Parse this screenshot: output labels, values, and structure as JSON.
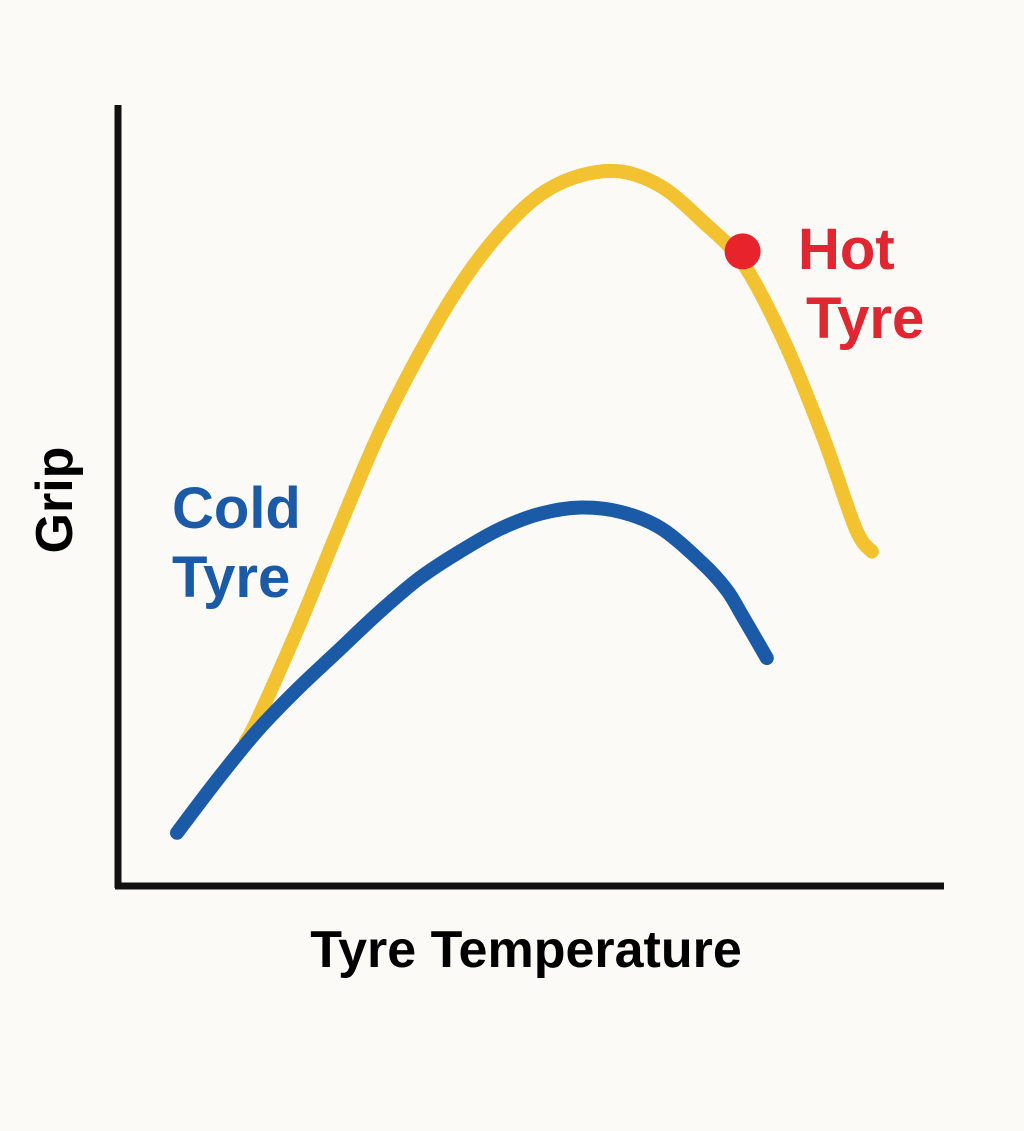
{
  "chart_data": {
    "type": "line",
    "title": "",
    "xlabel": "Tyre Temperature",
    "ylabel": "Grip",
    "xlim": [
      0,
      100
    ],
    "ylim": [
      0,
      100
    ],
    "grid": false,
    "axis_ticks": false,
    "series": [
      {
        "name": "Cold Tyre",
        "color": "#1a5aa6",
        "x": [
          0,
          5,
          10,
          15,
          20,
          25,
          30,
          35,
          40,
          45,
          50,
          55,
          60,
          65,
          68,
          70,
          73
        ],
        "y": [
          7,
          14,
          20.5,
          26,
          31,
          36,
          40.5,
          44,
          47,
          49,
          49.8,
          49.2,
          47,
          42.5,
          39,
          35.5,
          30
        ]
      },
      {
        "name": "Hot Tyre",
        "color": "#f2c230",
        "x": [
          8.5,
          10,
          15,
          20,
          25,
          30,
          35,
          40,
          45,
          50,
          55,
          60,
          65,
          70,
          75,
          80,
          84,
          86
        ],
        "y": [
          19,
          22,
          34,
          47,
          59.5,
          70,
          79,
          86,
          91,
          93.5,
          94,
          92,
          87.5,
          82,
          72,
          59,
          47,
          44
        ]
      }
    ],
    "annotations": [
      {
        "text_lines": [
          "Cold",
          "Tyre"
        ],
        "color": "#1a5aa6"
      },
      {
        "text_lines": [
          "Hot",
          "Tyre"
        ],
        "color": "#e02630"
      }
    ],
    "marker": {
      "x": 70,
      "y": 83.5,
      "color": "#e8232b"
    },
    "axis_color": "#111111"
  }
}
